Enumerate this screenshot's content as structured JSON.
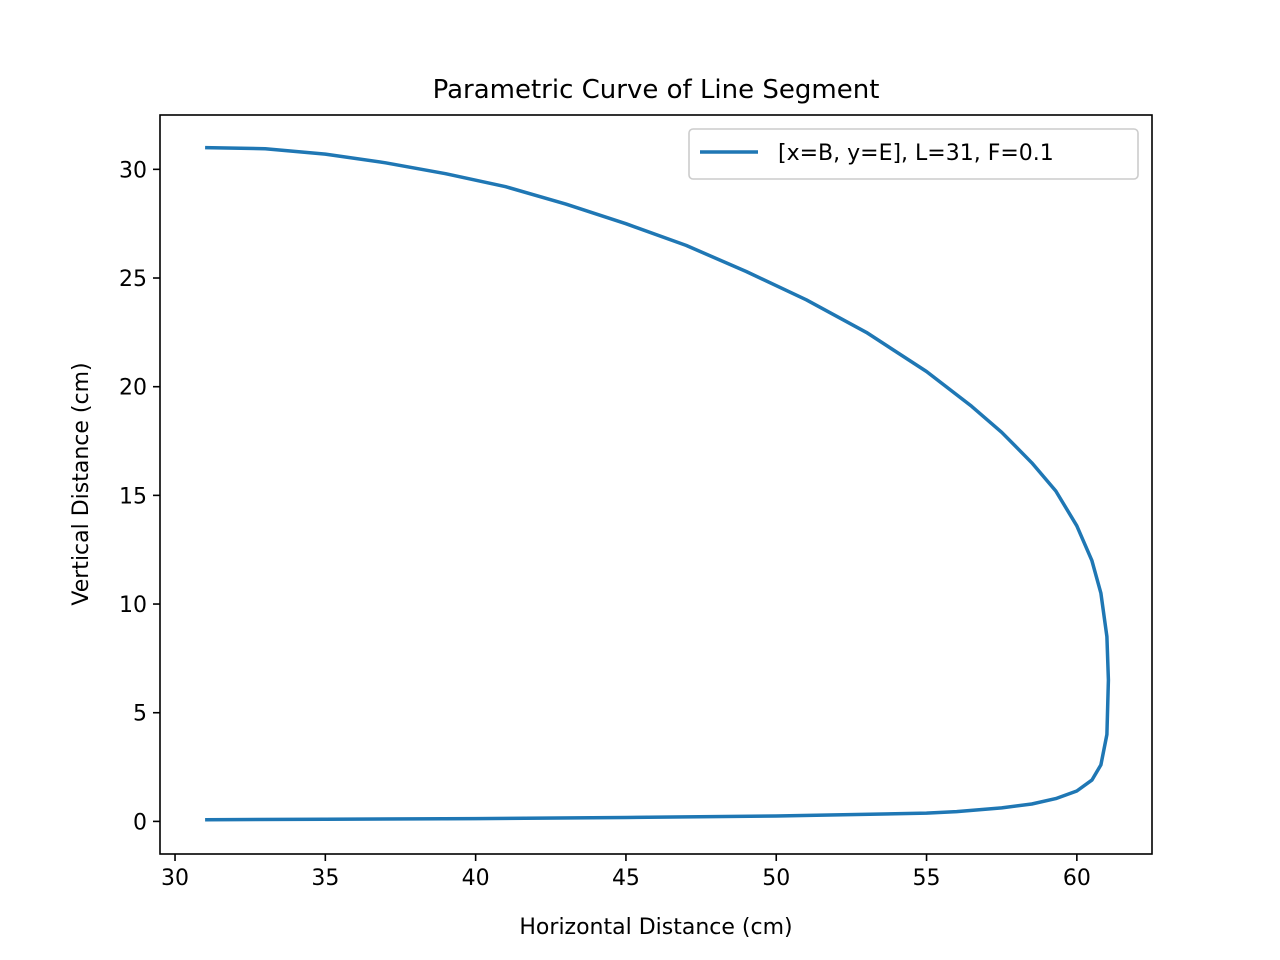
{
  "chart_data": {
    "type": "line",
    "title": "Parametric Curve of Line Segment",
    "xlabel": "Horizontal Distance (cm)",
    "ylabel": "Vertical Distance (cm)",
    "xlim": [
      29.5,
      62.5
    ],
    "ylim": [
      -1.5,
      32.5
    ],
    "x_ticks": [
      30,
      35,
      40,
      45,
      50,
      55,
      60
    ],
    "y_ticks": [
      0,
      5,
      10,
      15,
      20,
      25,
      30
    ],
    "grid": false,
    "legend_position": "upper right",
    "series": [
      {
        "name": "[x=B, y=E], L=31, F=0.1",
        "color": "#1f77b4",
        "x": [
          31.0,
          33.0,
          35.0,
          37.0,
          39.0,
          41.0,
          43.0,
          45.0,
          47.0,
          49.0,
          51.0,
          53.0,
          55.0,
          56.5,
          57.5,
          58.5,
          59.3,
          60.0,
          60.5,
          60.8,
          61.0,
          61.05,
          61.0,
          60.8,
          60.5,
          60.0,
          59.3,
          58.5,
          57.5,
          56.0,
          55.0,
          52.0,
          50.0,
          45.0,
          40.0,
          35.0,
          31.0
        ],
        "y": [
          31.0,
          30.95,
          30.7,
          30.3,
          29.8,
          29.2,
          28.4,
          27.5,
          26.5,
          25.3,
          24.0,
          22.5,
          20.7,
          19.1,
          17.9,
          16.5,
          15.2,
          13.6,
          12.0,
          10.5,
          8.5,
          6.5,
          4.0,
          2.6,
          1.9,
          1.4,
          1.05,
          0.8,
          0.62,
          0.45,
          0.38,
          0.3,
          0.25,
          0.18,
          0.13,
          0.1,
          0.08
        ]
      }
    ]
  }
}
